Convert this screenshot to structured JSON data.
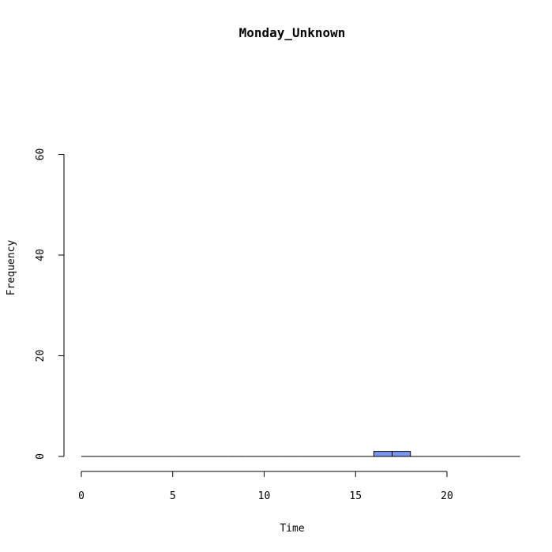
{
  "chart_data": {
    "type": "bar",
    "title": "Monday_Unknown",
    "xlabel": "Time",
    "ylabel": "Frequency",
    "x_axis": {
      "lim": [
        0,
        24
      ],
      "ticks": [
        0,
        5,
        10,
        15,
        20
      ],
      "tick_labels": [
        "0",
        "5",
        "10",
        "15",
        "20"
      ]
    },
    "y_axis": {
      "lim": [
        0,
        60
      ],
      "ticks": [
        0,
        20,
        40,
        60
      ],
      "tick_labels": [
        "0",
        "20",
        "40",
        "60"
      ]
    },
    "bin_width": 1,
    "bins": [
      {
        "start": 0,
        "end": 1,
        "count": 0
      },
      {
        "start": 1,
        "end": 2,
        "count": 0
      },
      {
        "start": 2,
        "end": 3,
        "count": 0
      },
      {
        "start": 3,
        "end": 4,
        "count": 0
      },
      {
        "start": 4,
        "end": 5,
        "count": 0
      },
      {
        "start": 5,
        "end": 6,
        "count": 0
      },
      {
        "start": 6,
        "end": 7,
        "count": 0
      },
      {
        "start": 7,
        "end": 8,
        "count": 0
      },
      {
        "start": 8,
        "end": 9,
        "count": 0
      },
      {
        "start": 9,
        "end": 10,
        "count": 0
      },
      {
        "start": 10,
        "end": 11,
        "count": 0
      },
      {
        "start": 11,
        "end": 12,
        "count": 0
      },
      {
        "start": 12,
        "end": 13,
        "count": 0
      },
      {
        "start": 13,
        "end": 14,
        "count": 0
      },
      {
        "start": 14,
        "end": 15,
        "count": 0
      },
      {
        "start": 15,
        "end": 16,
        "count": 0
      },
      {
        "start": 16,
        "end": 17,
        "count": 1
      },
      {
        "start": 17,
        "end": 18,
        "count": 1
      },
      {
        "start": 18,
        "end": 19,
        "count": 0
      },
      {
        "start": 19,
        "end": 20,
        "count": 0
      },
      {
        "start": 20,
        "end": 21,
        "count": 0
      },
      {
        "start": 21,
        "end": 22,
        "count": 0
      },
      {
        "start": 22,
        "end": 23,
        "count": 0
      },
      {
        "start": 23,
        "end": 24,
        "count": 0
      }
    ],
    "bar_color": "#7B96EE",
    "grid": false,
    "legend": "none"
  }
}
